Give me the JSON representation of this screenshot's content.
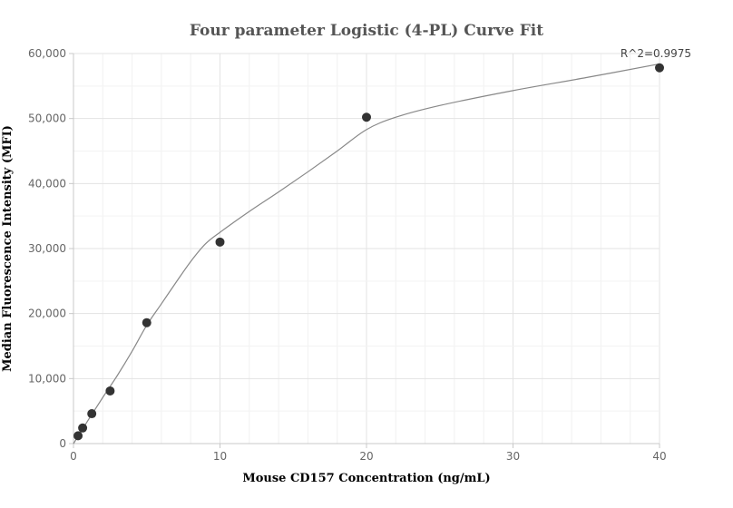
{
  "chart_data": {
    "type": "scatter",
    "title": "Four parameter Logistic (4-PL) Curve Fit",
    "xlabel": "Mouse CD157 Concentration (ng/mL)",
    "ylabel": "Median Fluorescence Intensity (MFI)",
    "xlim": [
      0,
      40
    ],
    "ylim": [
      0,
      60000
    ],
    "x_ticks": [
      0,
      10,
      20,
      30,
      40
    ],
    "y_ticks": [
      0,
      10000,
      20000,
      30000,
      40000,
      50000,
      60000
    ],
    "x_tick_labels": [
      "0",
      "10",
      "20",
      "30",
      "40"
    ],
    "y_tick_labels": [
      "0",
      "10,000",
      "20,000",
      "30,000",
      "40,000",
      "50,000",
      "60,000"
    ],
    "grid": true,
    "annotation": "R^2=0.9975",
    "points": [
      {
        "x": 0.3125,
        "y": 1200
      },
      {
        "x": 0.625,
        "y": 2400
      },
      {
        "x": 1.25,
        "y": 4600
      },
      {
        "x": 2.5,
        "y": 8100
      },
      {
        "x": 5,
        "y": 18600
      },
      {
        "x": 10,
        "y": 31000
      },
      {
        "x": 20,
        "y": 50200
      },
      {
        "x": 40,
        "y": 57800
      }
    ],
    "fit_curve": [
      [
        0,
        0
      ],
      [
        1,
        3600
      ],
      [
        2,
        7100
      ],
      [
        3,
        10500
      ],
      [
        4,
        14200
      ],
      [
        5,
        18200
      ],
      [
        6,
        21500
      ],
      [
        7,
        24800
      ],
      [
        8,
        28000
      ],
      [
        9,
        30700
      ],
      [
        10,
        32500
      ],
      [
        12,
        35700
      ],
      [
        14,
        38700
      ],
      [
        16,
        41800
      ],
      [
        18,
        45000
      ],
      [
        20,
        48300
      ],
      [
        22,
        50200
      ],
      [
        25,
        52000
      ],
      [
        30,
        54300
      ],
      [
        35,
        56300
      ],
      [
        40,
        58400
      ]
    ],
    "colors": {
      "points": "#333333",
      "curve": "#888888",
      "grid": "#ececec",
      "axis": "#cccccc"
    }
  }
}
